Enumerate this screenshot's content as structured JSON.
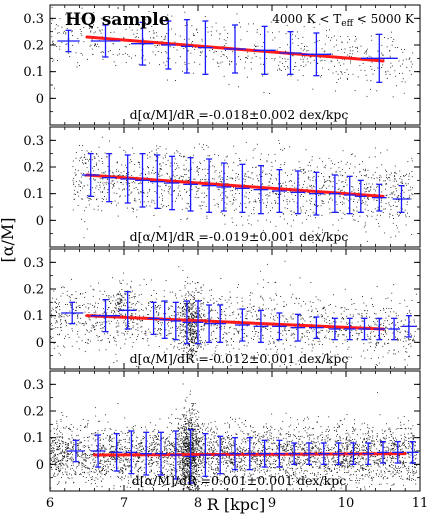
{
  "figure": {
    "title": "HQ sample",
    "teff_label": "4000 K < T_eff < 5000 K",
    "ylabel": "[α/M]",
    "xlabel": "R   [kpc]"
  },
  "chart_data": [
    {
      "type": "scatter",
      "panel": 1,
      "xlim": [
        6,
        11
      ],
      "ylim": [
        -0.1,
        0.35
      ],
      "xticks": [
        6,
        7,
        8,
        9,
        10,
        11
      ],
      "yticks": [
        0,
        0.1,
        0.2,
        0.3
      ],
      "grid": false,
      "annotation": "d[α/M]/dR =-0.018±0.002 dex/kpc",
      "fit": {
        "x": [
          6.5,
          10.5
        ],
        "y": [
          0.23,
          0.14
        ]
      },
      "binned": {
        "x": [
          6.25,
          6.75,
          7.25,
          7.6,
          7.85,
          8.1,
          8.5,
          8.9,
          9.25,
          9.6,
          10.45
        ],
        "y": [
          0.215,
          0.215,
          0.205,
          0.2,
          0.195,
          0.19,
          0.185,
          0.18,
          0.17,
          0.165,
          0.15
        ],
        "yerr": [
          0.04,
          0.06,
          0.08,
          0.09,
          0.1,
          0.1,
          0.09,
          0.09,
          0.08,
          0.08,
          0.09
        ],
        "xerr": [
          0.15,
          0.2,
          0.15,
          0.1,
          0.08,
          0.1,
          0.15,
          0.15,
          0.15,
          0.2,
          0.25
        ]
      },
      "scatter_stats": {
        "n": 650,
        "x_range": [
          6.0,
          10.9
        ],
        "y_center": 0.18,
        "y_spread": 0.12,
        "clusters": []
      }
    },
    {
      "type": "scatter",
      "panel": 2,
      "xlim": [
        6,
        11
      ],
      "ylim": [
        -0.1,
        0.35
      ],
      "xticks": [
        6,
        7,
        8,
        9,
        10,
        11
      ],
      "yticks": [
        0,
        0.1,
        0.2,
        0.3
      ],
      "grid": false,
      "annotation": "d[α/M]/dR =-0.019±0.001 dex/kpc",
      "fit": {
        "x": [
          6.5,
          10.5
        ],
        "y": [
          0.17,
          0.09
        ]
      },
      "binned": {
        "x": [
          6.55,
          6.8,
          7.05,
          7.25,
          7.45,
          7.65,
          7.9,
          8.15,
          8.35,
          8.6,
          8.85,
          9.1,
          9.35,
          9.6,
          9.85,
          10.05,
          10.2,
          10.45,
          10.75
        ],
        "y": [
          0.17,
          0.16,
          0.155,
          0.15,
          0.145,
          0.14,
          0.135,
          0.13,
          0.125,
          0.12,
          0.115,
          0.11,
          0.105,
          0.1,
          0.1,
          0.095,
          0.09,
          0.085,
          0.08
        ],
        "yerr": [
          0.08,
          0.09,
          0.09,
          0.1,
          0.1,
          0.1,
          0.1,
          0.1,
          0.09,
          0.09,
          0.09,
          0.08,
          0.08,
          0.08,
          0.07,
          0.07,
          0.06,
          0.05,
          0.05
        ],
        "xerr": [
          0.12,
          0.1,
          0.1,
          0.1,
          0.1,
          0.1,
          0.1,
          0.1,
          0.1,
          0.1,
          0.1,
          0.1,
          0.1,
          0.1,
          0.08,
          0.08,
          0.08,
          0.1,
          0.12
        ]
      },
      "scatter_stats": {
        "n": 1400,
        "x_range": [
          6.3,
          10.9
        ],
        "y_center": 0.12,
        "y_spread": 0.15,
        "clusters": []
      }
    },
    {
      "type": "scatter",
      "panel": 3,
      "xlim": [
        6,
        11
      ],
      "ylim": [
        -0.1,
        0.35
      ],
      "xticks": [
        6,
        7,
        8,
        9,
        10,
        11
      ],
      "yticks": [
        0,
        0.1,
        0.2,
        0.3
      ],
      "grid": false,
      "annotation": "d[α/M]/dR =-0.012±0.001 dex/kpc",
      "fit": {
        "x": [
          6.5,
          10.5
        ],
        "y": [
          0.1,
          0.05
        ]
      },
      "binned": {
        "x": [
          6.3,
          6.75,
          7.05,
          7.4,
          7.55,
          7.7,
          7.85,
          8.0,
          8.15,
          8.3,
          8.6,
          8.85,
          9.1,
          9.35,
          9.6,
          9.85,
          10.05,
          10.25,
          10.45,
          10.65,
          10.85
        ],
        "y": [
          0.11,
          0.1,
          0.12,
          0.09,
          0.085,
          0.08,
          0.075,
          0.075,
          0.07,
          0.07,
          0.065,
          0.06,
          0.06,
          0.055,
          0.055,
          0.05,
          0.05,
          0.05,
          0.05,
          0.05,
          0.06
        ],
        "yerr": [
          0.04,
          0.06,
          0.07,
          0.06,
          0.07,
          0.07,
          0.08,
          0.08,
          0.07,
          0.07,
          0.06,
          0.06,
          0.05,
          0.05,
          0.04,
          0.04,
          0.04,
          0.04,
          0.04,
          0.04,
          0.04
        ],
        "xerr": [
          0.15,
          0.2,
          0.12,
          0.08,
          0.07,
          0.07,
          0.06,
          0.07,
          0.07,
          0.08,
          0.1,
          0.1,
          0.1,
          0.1,
          0.1,
          0.08,
          0.08,
          0.08,
          0.08,
          0.08,
          0.1
        ]
      },
      "scatter_stats": {
        "n": 2000,
        "x_range": [
          6.0,
          10.95
        ],
        "y_center": 0.07,
        "y_spread": 0.14,
        "clusters": [
          [
            7.9,
            0.07,
            0.15,
            400
          ],
          [
            6.95,
            0.15,
            0.08,
            80
          ]
        ]
      }
    },
    {
      "type": "scatter",
      "panel": 4,
      "xlim": [
        6,
        11
      ],
      "ylim": [
        -0.1,
        0.35
      ],
      "xticks": [
        6,
        7,
        8,
        9,
        10,
        11
      ],
      "yticks": [
        0,
        0.1,
        0.2,
        0.3
      ],
      "grid": false,
      "annotation": "d[α/M]/dR =0.001±0.001 dex/kpc",
      "fit": {
        "x": [
          6.6,
          10.8
        ],
        "y": [
          0.035,
          0.04
        ]
      },
      "binned": {
        "x": [
          6.35,
          6.65,
          6.9,
          7.1,
          7.3,
          7.5,
          7.7,
          7.9,
          8.1,
          8.3,
          8.5,
          8.7,
          8.9,
          9.1,
          9.3,
          9.5,
          9.7,
          9.9,
          10.1,
          10.3,
          10.5,
          10.7,
          10.9
        ],
        "y": [
          0.05,
          0.05,
          0.045,
          0.045,
          0.04,
          0.04,
          0.035,
          0.03,
          0.035,
          0.035,
          0.04,
          0.04,
          0.04,
          0.04,
          0.04,
          0.04,
          0.04,
          0.04,
          0.04,
          0.04,
          0.045,
          0.045,
          0.045
        ],
        "yerr": [
          0.04,
          0.06,
          0.07,
          0.08,
          0.08,
          0.08,
          0.09,
          0.1,
          0.08,
          0.07,
          0.06,
          0.06,
          0.05,
          0.05,
          0.04,
          0.04,
          0.04,
          0.04,
          0.04,
          0.04,
          0.04,
          0.04,
          0.04
        ],
        "xerr": [
          0.12,
          0.1,
          0.08,
          0.08,
          0.08,
          0.08,
          0.08,
          0.08,
          0.08,
          0.08,
          0.08,
          0.08,
          0.08,
          0.08,
          0.08,
          0.08,
          0.08,
          0.08,
          0.08,
          0.08,
          0.08,
          0.08,
          0.08
        ]
      },
      "scatter_stats": {
        "n": 4500,
        "x_range": [
          6.0,
          10.95
        ],
        "y_center": 0.04,
        "y_spread": 0.12,
        "clusters": [
          [
            7.88,
            0.03,
            0.2,
            800
          ]
        ]
      }
    }
  ]
}
